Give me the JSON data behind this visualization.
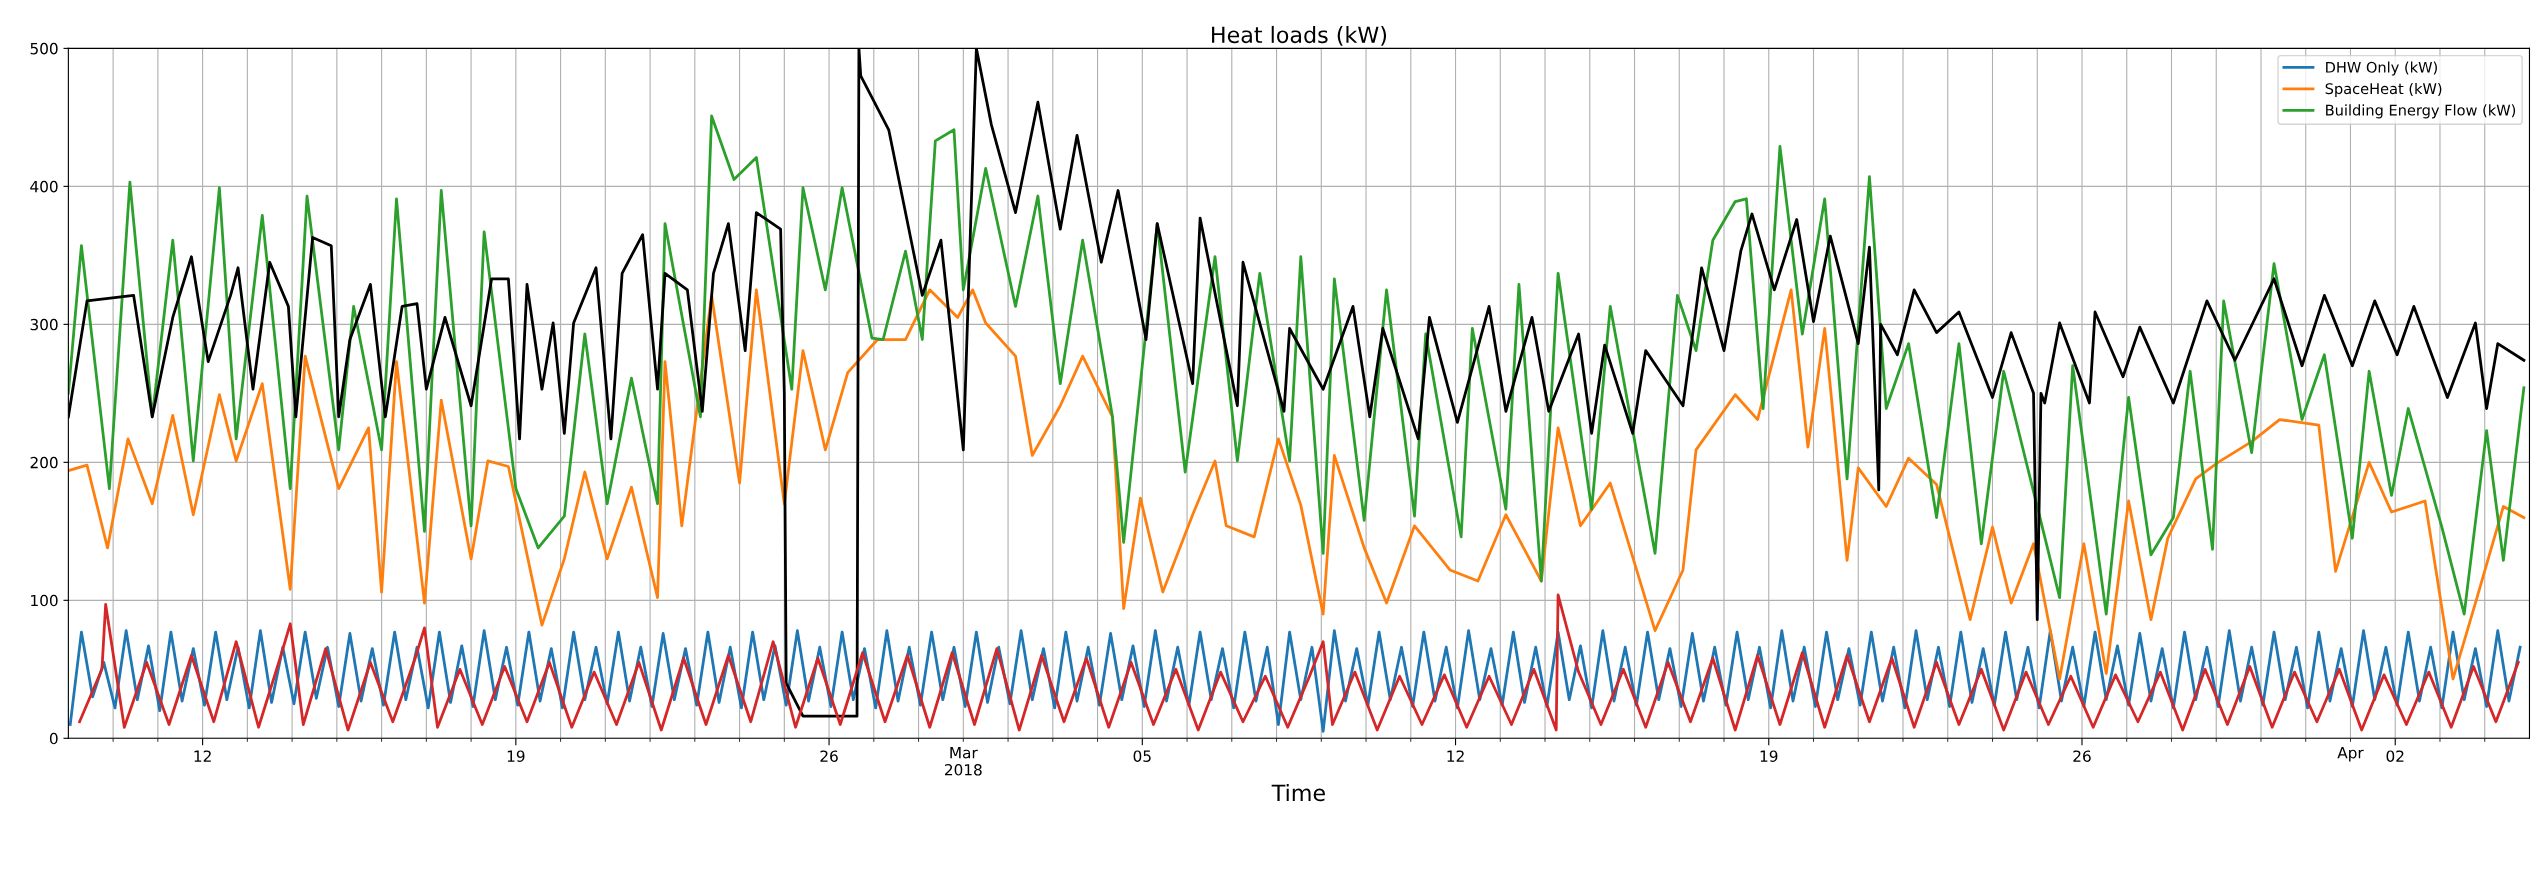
{
  "chart_data": {
    "type": "line",
    "title": "Heat loads (kW)",
    "xlabel": "Time",
    "xlim": [
      "2018-02-09T00:00",
      "2018-04-05T00:00"
    ],
    "ylim": [
      0,
      500
    ],
    "yticks": [
      0,
      100,
      200,
      300,
      400,
      500
    ],
    "xticks": [
      {
        "value": "2018-02-10",
        "label": null
      },
      {
        "value": "2018-02-11",
        "label": null
      },
      {
        "value": "2018-02-12",
        "label": "12"
      },
      {
        "value": "2018-02-13",
        "label": null
      },
      {
        "value": "2018-02-14",
        "label": null
      },
      {
        "value": "2018-02-15",
        "label": null
      },
      {
        "value": "2018-02-16",
        "label": null
      },
      {
        "value": "2018-02-17",
        "label": null
      },
      {
        "value": "2018-02-18",
        "label": null
      },
      {
        "value": "2018-02-19",
        "label": "19"
      },
      {
        "value": "2018-02-20",
        "label": null
      },
      {
        "value": "2018-02-21",
        "label": null
      },
      {
        "value": "2018-02-22",
        "label": null
      },
      {
        "value": "2018-02-23",
        "label": null
      },
      {
        "value": "2018-02-24",
        "label": null
      },
      {
        "value": "2018-02-25",
        "label": null
      },
      {
        "value": "2018-02-26",
        "label": "26"
      },
      {
        "value": "2018-02-27",
        "label": null
      },
      {
        "value": "2018-02-28",
        "label": null
      },
      {
        "value": "2018-03-01",
        "label": "Mar\n2018"
      },
      {
        "value": "2018-03-02",
        "label": null
      },
      {
        "value": "2018-03-03",
        "label": null
      },
      {
        "value": "2018-03-04",
        "label": null
      },
      {
        "value": "2018-03-05",
        "label": "05"
      },
      {
        "value": "2018-03-06",
        "label": null
      },
      {
        "value": "2018-03-07",
        "label": null
      },
      {
        "value": "2018-03-08",
        "label": null
      },
      {
        "value": "2018-03-09",
        "label": null
      },
      {
        "value": "2018-03-10",
        "label": null
      },
      {
        "value": "2018-03-11",
        "label": null
      },
      {
        "value": "2018-03-12",
        "label": "12"
      },
      {
        "value": "2018-03-13",
        "label": null
      },
      {
        "value": "2018-03-14",
        "label": null
      },
      {
        "value": "2018-03-15",
        "label": null
      },
      {
        "value": "2018-03-16",
        "label": null
      },
      {
        "value": "2018-03-17",
        "label": null
      },
      {
        "value": "2018-03-18",
        "label": null
      },
      {
        "value": "2018-03-19",
        "label": "19"
      },
      {
        "value": "2018-03-20",
        "label": null
      },
      {
        "value": "2018-03-21",
        "label": null
      },
      {
        "value": "2018-03-22",
        "label": null
      },
      {
        "value": "2018-03-23",
        "label": null
      },
      {
        "value": "2018-03-24",
        "label": null
      },
      {
        "value": "2018-03-25",
        "label": null
      },
      {
        "value": "2018-03-26",
        "label": "26"
      },
      {
        "value": "2018-03-27",
        "label": null
      },
      {
        "value": "2018-03-28",
        "label": null
      },
      {
        "value": "2018-03-29",
        "label": null
      },
      {
        "value": "2018-03-30",
        "label": null
      },
      {
        "value": "2018-03-31",
        "label": null
      },
      {
        "value": "2018-04-01",
        "label": "Apr"
      },
      {
        "value": "2018-04-02",
        "label": "02"
      },
      {
        "value": "2018-04-03",
        "label": null
      },
      {
        "value": "2018-04-04",
        "label": null
      }
    ],
    "grid": true,
    "legend": "top right",
    "marker": "none",
    "line_style": "solid",
    "series": [
      {
        "name": "DHW Only (kW)",
        "color": "#1f77b4",
        "x": [
          "2018-02-09T01:00",
          "2018-02-09T07:00",
          "2018-02-09T13:00",
          "2018-02-09T19:00",
          "2018-02-10T01:00",
          "2018-02-10T07:00",
          "2018-02-10T13:00",
          "2018-02-10T19:00",
          "2018-02-11T01:00",
          "2018-02-11T07:00",
          "2018-02-11T13:00",
          "2018-02-11T19:00",
          "2018-02-12T01:00",
          "2018-02-12T07:00",
          "2018-02-12T13:00",
          "2018-02-12T19:00",
          "2018-02-13T01:00",
          "2018-02-13T07:00",
          "2018-02-13T13:00",
          "2018-02-13T19:00",
          "2018-02-14T01:00",
          "2018-02-14T07:00",
          "2018-02-14T13:00",
          "2018-02-14T19:00",
          "2018-02-15T01:00",
          "2018-02-15T07:00",
          "2018-02-15T13:00",
          "2018-02-15T19:00",
          "2018-02-16T01:00",
          "2018-02-16T07:00",
          "2018-02-16T13:00",
          "2018-02-16T19:00",
          "2018-02-17T01:00",
          "2018-02-17T07:00",
          "2018-02-17T13:00",
          "2018-02-17T19:00",
          "2018-02-18T01:00",
          "2018-02-18T07:00",
          "2018-02-18T13:00",
          "2018-02-18T19:00",
          "2018-02-19T01:00",
          "2018-02-19T07:00",
          "2018-02-19T13:00",
          "2018-02-19T19:00",
          "2018-02-20T01:00",
          "2018-02-20T07:00",
          "2018-02-20T13:00",
          "2018-02-20T19:00",
          "2018-02-21T01:00",
          "2018-02-21T07:00",
          "2018-02-21T13:00",
          "2018-02-21T19:00",
          "2018-02-22T01:00",
          "2018-02-22T07:00",
          "2018-02-22T13:00",
          "2018-02-22T19:00",
          "2018-02-23T01:00",
          "2018-02-23T07:00",
          "2018-02-23T13:00",
          "2018-02-23T19:00",
          "2018-02-24T01:00",
          "2018-02-24T07:00",
          "2018-02-24T13:00",
          "2018-02-24T19:00",
          "2018-02-25T01:00",
          "2018-02-25T07:00",
          "2018-02-25T13:00",
          "2018-02-25T19:00",
          "2018-02-26T01:00",
          "2018-02-26T07:00",
          "2018-02-26T13:00",
          "2018-02-26T19:00",
          "2018-02-27T01:00",
          "2018-02-27T07:00",
          "2018-02-27T13:00",
          "2018-02-27T19:00",
          "2018-02-28T01:00",
          "2018-02-28T07:00",
          "2018-02-28T13:00",
          "2018-02-28T19:00",
          "2018-03-01T01:00",
          "2018-03-01T07:00",
          "2018-03-01T13:00",
          "2018-03-01T19:00",
          "2018-03-02T01:00",
          "2018-03-02T07:00",
          "2018-03-02T13:00",
          "2018-03-02T19:00",
          "2018-03-03T01:00",
          "2018-03-03T07:00",
          "2018-03-03T13:00",
          "2018-03-03T19:00",
          "2018-03-04T01:00",
          "2018-03-04T07:00",
          "2018-03-04T13:00",
          "2018-03-04T19:00",
          "2018-03-05T01:00",
          "2018-03-05T07:00",
          "2018-03-05T13:00",
          "2018-03-05T19:00",
          "2018-03-06T01:00",
          "2018-03-06T07:00",
          "2018-03-06T13:00",
          "2018-03-06T19:00",
          "2018-03-07T01:00",
          "2018-03-07T07:00",
          "2018-03-07T13:00",
          "2018-03-07T19:00",
          "2018-03-08T01:00",
          "2018-03-08T07:00",
          "2018-03-08T13:00",
          "2018-03-08T19:00",
          "2018-03-09T01:00",
          "2018-03-09T07:00",
          "2018-03-09T13:00",
          "2018-03-09T19:00",
          "2018-03-10T01:00",
          "2018-03-10T07:00",
          "2018-03-10T13:00",
          "2018-03-10T19:00",
          "2018-03-11T01:00",
          "2018-03-11T07:00",
          "2018-03-11T13:00",
          "2018-03-11T19:00",
          "2018-03-12T01:00",
          "2018-03-12T07:00",
          "2018-03-12T13:00",
          "2018-03-12T19:00",
          "2018-03-13T01:00",
          "2018-03-13T07:00",
          "2018-03-13T13:00",
          "2018-03-13T19:00",
          "2018-03-14T01:00",
          "2018-03-14T07:00",
          "2018-03-14T13:00",
          "2018-03-14T19:00",
          "2018-03-15T01:00",
          "2018-03-15T07:00",
          "2018-03-15T13:00",
          "2018-03-15T19:00",
          "2018-03-16T01:00",
          "2018-03-16T07:00",
          "2018-03-16T13:00",
          "2018-03-16T19:00",
          "2018-03-17T01:00",
          "2018-03-17T07:00",
          "2018-03-17T13:00",
          "2018-03-17T19:00",
          "2018-03-18T01:00",
          "2018-03-18T07:00",
          "2018-03-18T13:00",
          "2018-03-18T19:00",
          "2018-03-19T01:00",
          "2018-03-19T07:00",
          "2018-03-19T13:00",
          "2018-03-19T19:00",
          "2018-03-20T01:00",
          "2018-03-20T07:00",
          "2018-03-20T13:00",
          "2018-03-20T19:00",
          "2018-03-21T01:00",
          "2018-03-21T07:00",
          "2018-03-21T13:00",
          "2018-03-21T19:00",
          "2018-03-22T01:00",
          "2018-03-22T07:00",
          "2018-03-22T13:00",
          "2018-03-22T19:00",
          "2018-03-23T01:00",
          "2018-03-23T07:00",
          "2018-03-23T13:00",
          "2018-03-23T19:00",
          "2018-03-24T01:00",
          "2018-03-24T07:00",
          "2018-03-24T13:00",
          "2018-03-24T19:00",
          "2018-03-25T01:00",
          "2018-03-25T07:00",
          "2018-03-25T13:00",
          "2018-03-25T19:00",
          "2018-03-26T01:00",
          "2018-03-26T07:00",
          "2018-03-26T13:00",
          "2018-03-26T19:00",
          "2018-03-27T01:00",
          "2018-03-27T07:00",
          "2018-03-27T13:00",
          "2018-03-27T19:00",
          "2018-03-28T01:00",
          "2018-03-28T07:00",
          "2018-03-28T13:00",
          "2018-03-28T19:00",
          "2018-03-29T01:00",
          "2018-03-29T07:00",
          "2018-03-29T13:00",
          "2018-03-29T19:00",
          "2018-03-30T01:00",
          "2018-03-30T07:00",
          "2018-03-30T13:00",
          "2018-03-30T19:00",
          "2018-03-31T01:00",
          "2018-03-31T07:00",
          "2018-03-31T13:00",
          "2018-03-31T19:00",
          "2018-04-01T01:00",
          "2018-04-01T07:00",
          "2018-04-01T13:00",
          "2018-04-01T19:00",
          "2018-04-02T01:00",
          "2018-04-02T07:00",
          "2018-04-02T13:00",
          "2018-04-02T19:00",
          "2018-04-03T01:00",
          "2018-04-03T07:00",
          "2018-04-03T13:00",
          "2018-04-03T19:00",
          "2018-04-04T01:00",
          "2018-04-04T07:00",
          "2018-04-04T13:00",
          "2018-04-04T19:00"
        ],
        "values": [
          10,
          77,
          30,
          55,
          22,
          78,
          28,
          67,
          20,
          77,
          27,
          65,
          24,
          77,
          28,
          66,
          22,
          78,
          26,
          66,
          25,
          77,
          29,
          66,
          23,
          76,
          27,
          65,
          24,
          77,
          28,
          66,
          22,
          77,
          26,
          67,
          23,
          78,
          28,
          66,
          24,
          77,
          27,
          65,
          22,
          77,
          28,
          66,
          25,
          77,
          27,
          66,
          23,
          76,
          28,
          65,
          24,
          77,
          26,
          66,
          22,
          77,
          28,
          67,
          24,
          78,
          27,
          66,
          23,
          77,
          28,
          65,
          22,
          78,
          27,
          66,
          24,
          77,
          28,
          66,
          23,
          77,
          26,
          66,
          25,
          78,
          28,
          65,
          22,
          77,
          27,
          66,
          24,
          76,
          28,
          67,
          23,
          78,
          27,
          66,
          24,
          77,
          28,
          65,
          22,
          77,
          27,
          66,
          10,
          77,
          28,
          66,
          5,
          78,
          27,
          65,
          24,
          77,
          28,
          66,
          23,
          77,
          27,
          66,
          22,
          78,
          28,
          65,
          24,
          77,
          26,
          66,
          23,
          77,
          28,
          67,
          22,
          78,
          27,
          66,
          24,
          77,
          28,
          65,
          23,
          76,
          27,
          66,
          24,
          77,
          28,
          66,
          22,
          78,
          27,
          66,
          23,
          77,
          28,
          65,
          24,
          77,
          27,
          66,
          22,
          78,
          28,
          66,
          23,
          77,
          26,
          65,
          24,
          77,
          28,
          66,
          22,
          78,
          27,
          66,
          23,
          77,
          28,
          67,
          24,
          76,
          27,
          65,
          22,
          77,
          28,
          66,
          23,
          78,
          27,
          66,
          24,
          77,
          28,
          66,
          22,
          77,
          27,
          65,
          23,
          78,
          28,
          66,
          24,
          77,
          27,
          66,
          22,
          77,
          28,
          65,
          23,
          78,
          27,
          66
        ]
      },
      {
        "name": "SpaceHeat (kW)",
        "color": "#ff7f0e",
        "x": [
          "2018-02-09T00:00",
          "2018-02-09T10:00",
          "2018-02-09T21:00",
          "2018-02-10T08:00",
          "2018-02-10T21:00",
          "2018-02-11T08:00",
          "2018-02-11T19:00",
          "2018-02-12T09:00",
          "2018-02-12T18:00",
          "2018-02-13T08:00",
          "2018-02-13T23:00",
          "2018-02-14T07:00",
          "2018-02-15T01:00",
          "2018-02-15T17:00",
          "2018-02-16T00:00",
          "2018-02-16T08:00",
          "2018-02-16T23:00",
          "2018-02-17T08:00",
          "2018-02-18T00:00",
          "2018-02-18T09:00",
          "2018-02-18T20:00",
          "2018-02-19T14:00",
          "2018-02-20T02:00",
          "2018-02-20T13:00",
          "2018-02-21T01:00",
          "2018-02-21T14:00",
          "2018-02-22T04:00",
          "2018-02-22T08:00",
          "2018-02-22T17:00",
          "2018-02-23T09:00",
          "2018-02-24T00:00",
          "2018-02-24T09:00",
          "2018-02-25T00:00",
          "2018-02-25T10:00",
          "2018-02-25T22:00",
          "2018-02-26T10:00",
          "2018-02-27T02:00",
          "2018-02-27T17:00",
          "2018-02-28T06:00",
          "2018-02-28T21:00",
          "2018-03-01T05:00",
          "2018-03-01T12:00",
          "2018-03-02T04:00",
          "2018-03-02T13:00",
          "2018-03-03T04:00",
          "2018-03-03T16:00",
          "2018-03-04T08:00",
          "2018-03-04T14:00",
          "2018-03-04T23:00",
          "2018-03-05T11:00",
          "2018-03-06T03:00",
          "2018-03-06T15:00",
          "2018-03-06T21:00",
          "2018-03-07T12:00",
          "2018-03-08T01:00",
          "2018-03-08T13:00",
          "2018-03-09T01:00",
          "2018-03-09T07:00",
          "2018-03-09T23:00",
          "2018-03-10T11:00",
          "2018-03-11T02:00",
          "2018-03-11T21:00",
          "2018-03-12T12:00",
          "2018-03-13T03:00",
          "2018-03-13T22:00",
          "2018-03-14T07:00",
          "2018-03-14T19:00",
          "2018-03-15T11:00",
          "2018-03-16T11:00",
          "2018-03-17T02:00",
          "2018-03-17T09:00",
          "2018-03-18T06:00",
          "2018-03-18T18:00",
          "2018-03-19T12:00",
          "2018-03-19T21:00",
          "2018-03-20T06:00",
          "2018-03-20T18:00",
          "2018-03-21T00:00",
          "2018-03-21T15:00",
          "2018-03-22T03:00",
          "2018-03-22T18:00",
          "2018-03-23T12:00",
          "2018-03-24T00:00",
          "2018-03-24T10:00",
          "2018-03-24T22:00",
          "2018-03-25T12:00",
          "2018-03-26T01:00",
          "2018-03-26T13:00",
          "2018-03-27T01:00",
          "2018-03-27T13:00",
          "2018-03-27T22:00",
          "2018-03-28T13:00",
          "2018-03-29T01:00",
          "2018-03-29T19:00",
          "2018-03-30T10:00",
          "2018-03-31T07:00",
          "2018-03-31T16:00",
          "2018-04-01T10:00",
          "2018-04-01T22:00",
          "2018-04-02T16:00",
          "2018-04-03T07:00",
          "2018-04-03T19:00",
          "2018-04-04T10:00",
          "2018-04-04T21:00"
        ],
        "values": [
          194,
          198,
          138,
          217,
          170,
          234,
          162,
          249,
          201,
          257,
          108,
          277,
          181,
          225,
          106,
          273,
          98,
          245,
          130,
          201,
          197,
          82,
          130,
          193,
          130,
          182,
          102,
          273,
          154,
          321,
          185,
          325,
          170,
          281,
          209,
          265,
          289,
          289,
          325,
          305,
          325,
          301,
          277,
          205,
          241,
          277,
          233,
          94,
          174,
          106,
          162,
          201,
          154,
          146,
          217,
          169,
          90,
          205,
          138,
          98,
          154,
          122,
          114,
          162,
          114,
          225,
          154,
          185,
          78,
          122,
          209,
          249,
          231,
          325,
          211,
          297,
          129,
          196,
          168,
          203,
          184,
          86,
          153,
          98,
          141,
          43,
          141,
          47,
          172,
          86,
          145,
          188,
          200,
          215,
          231,
          227,
          121,
          200,
          164,
          172,
          43,
          98,
          168,
          160
        ]
      },
      {
        "name": "Building Energy Flow (kW)",
        "color": "#2ca02c",
        "x": [
          "2018-02-09T00:00",
          "2018-02-09T07:00",
          "2018-02-09T22:00",
          "2018-02-10T09:00",
          "2018-02-10T21:00",
          "2018-02-11T08:00",
          "2018-02-11T19:00",
          "2018-02-12T09:00",
          "2018-02-12T18:00",
          "2018-02-13T08:00",
          "2018-02-13T23:00",
          "2018-02-14T08:00",
          "2018-02-15T01:00",
          "2018-02-15T09:00",
          "2018-02-16T00:00",
          "2018-02-16T08:00",
          "2018-02-16T23:00",
          "2018-02-17T08:00",
          "2018-02-18T00:00",
          "2018-02-18T07:00",
          "2018-02-19T00:00",
          "2018-02-19T12:00",
          "2018-02-20T02:00",
          "2018-02-20T13:00",
          "2018-02-21T01:00",
          "2018-02-21T14:00",
          "2018-02-22T04:00",
          "2018-02-22T08:00",
          "2018-02-23T03:00",
          "2018-02-23T09:00",
          "2018-02-23T21:00",
          "2018-02-24T09:00",
          "2018-02-25T04:00",
          "2018-02-25T10:00",
          "2018-02-25T22:00",
          "2018-02-26T07:00",
          "2018-02-26T23:00",
          "2018-02-27T05:00",
          "2018-02-27T17:00",
          "2018-02-28T02:00",
          "2018-02-28T09:00",
          "2018-02-28T19:00",
          "2018-03-01T00:00",
          "2018-03-01T12:00",
          "2018-03-02T04:00",
          "2018-03-02T16:00",
          "2018-03-03T04:00",
          "2018-03-03T16:00",
          "2018-03-04T08:00",
          "2018-03-04T14:00",
          "2018-03-05T08:00",
          "2018-03-05T23:00",
          "2018-03-06T15:00",
          "2018-03-07T03:00",
          "2018-03-07T15:00",
          "2018-03-08T07:00",
          "2018-03-08T13:00",
          "2018-03-09T01:00",
          "2018-03-09T07:00",
          "2018-03-09T23:00",
          "2018-03-10T11:00",
          "2018-03-11T02:00",
          "2018-03-11T08:00",
          "2018-03-12T03:00",
          "2018-03-12T09:00",
          "2018-03-13T03:00",
          "2018-03-13T10:00",
          "2018-03-13T22:00",
          "2018-03-14T07:00",
          "2018-03-15T01:00",
          "2018-03-15T11:00",
          "2018-03-16T11:00",
          "2018-03-16T23:00",
          "2018-03-17T09:00",
          "2018-03-17T18:00",
          "2018-03-18T06:00",
          "2018-03-18T12:00",
          "2018-03-18T21:00",
          "2018-03-19T06:00",
          "2018-03-19T18:00",
          "2018-03-20T06:00",
          "2018-03-20T18:00",
          "2018-03-21T06:00",
          "2018-03-21T15:00",
          "2018-03-22T03:00",
          "2018-03-22T18:00",
          "2018-03-23T06:00",
          "2018-03-23T18:00",
          "2018-03-24T06:00",
          "2018-03-25T00:00",
          "2018-03-25T12:00",
          "2018-03-25T19:00",
          "2018-03-26T13:00",
          "2018-03-27T01:00",
          "2018-03-27T13:00",
          "2018-03-28T01:00",
          "2018-03-28T10:00",
          "2018-03-28T22:00",
          "2018-03-29T04:00",
          "2018-03-29T19:00",
          "2018-03-30T07:00",
          "2018-03-30T22:00",
          "2018-03-31T10:00",
          "2018-04-01T01:00",
          "2018-04-01T10:00",
          "2018-04-01T22:00",
          "2018-04-02T07:00",
          "2018-04-03T01:00",
          "2018-04-03T13:00",
          "2018-04-04T01:00",
          "2018-04-04T10:00",
          "2018-04-04T21:00"
        ],
        "values": [
          250,
          357,
          181,
          403,
          233,
          361,
          201,
          399,
          217,
          379,
          181,
          393,
          209,
          313,
          209,
          391,
          150,
          397,
          154,
          367,
          181,
          138,
          161,
          293,
          170,
          261,
          170,
          373,
          233,
          451,
          405,
          421,
          253,
          399,
          325,
          399,
          290,
          289,
          353,
          289,
          433,
          441,
          325,
          413,
          313,
          393,
          257,
          361,
          233,
          142,
          373,
          193,
          349,
          201,
          337,
          201,
          349,
          134,
          333,
          158,
          325,
          161,
          293,
          146,
          297,
          166,
          329,
          114,
          337,
          166,
          313,
          134,
          321,
          281,
          361,
          389,
          391,
          239,
          429,
          293,
          391,
          188,
          407,
          239,
          286,
          160,
          286,
          141,
          266,
          168,
          102,
          270,
          90,
          247,
          133,
          160,
          266,
          137,
          317,
          207,
          344,
          231,
          278,
          145,
          266,
          176,
          239,
          153,
          90,
          223,
          129,
          254
        ]
      },
      {
        "color": "#000000",
        "x": [
          "2018-02-09T00:00",
          "2018-02-09T10:00",
          "2018-02-10T11:00",
          "2018-02-10T21:00",
          "2018-02-11T08:00",
          "2018-02-11T18:00",
          "2018-02-12T03:00",
          "2018-02-12T15:00",
          "2018-02-12T19:00",
          "2018-02-13T03:00",
          "2018-02-13T12:00",
          "2018-02-13T22:00",
          "2018-02-14T02:00",
          "2018-02-14T11:00",
          "2018-02-14T21:00",
          "2018-02-15T01:00",
          "2018-02-15T07:00",
          "2018-02-15T18:00",
          "2018-02-16T02:00",
          "2018-02-16T11:00",
          "2018-02-16T19:00",
          "2018-02-17T00:00",
          "2018-02-17T10:00",
          "2018-02-18T00:00",
          "2018-02-18T11:00",
          "2018-02-18T20:00",
          "2018-02-19T02:00",
          "2018-02-19T06:00",
          "2018-02-19T14:00",
          "2018-02-19T20:00",
          "2018-02-20T02:00",
          "2018-02-20T07:00",
          "2018-02-20T19:00",
          "2018-02-21T03:00",
          "2018-02-21T09:00",
          "2018-02-21T20:00",
          "2018-02-22T04:00",
          "2018-02-22T08:00",
          "2018-02-22T20:00",
          "2018-02-23T04:00",
          "2018-02-23T10:00",
          "2018-02-23T18:00",
          "2018-02-24T03:00",
          "2018-02-24T09:00",
          "2018-02-24T22:00",
          "2018-02-25T00:00",
          "2018-02-25T01:00",
          "2018-02-25T10:00",
          "2018-02-26T15:00",
          "2018-02-26T16:00",
          "2018-02-26T17:00",
          "2018-02-27T08:00",
          "2018-02-28T02:00",
          "2018-02-28T12:00",
          "2018-03-01T00:00",
          "2018-03-01T07:00",
          "2018-03-01T15:00",
          "2018-03-02T04:00",
          "2018-03-02T16:00",
          "2018-03-03T04:00",
          "2018-03-03T13:00",
          "2018-03-04T02:00",
          "2018-03-04T11:00",
          "2018-03-05T02:00",
          "2018-03-05T08:00",
          "2018-03-06T03:00",
          "2018-03-06T07:00",
          "2018-03-07T03:00",
          "2018-03-07T06:00",
          "2018-03-08T04:00",
          "2018-03-08T07:00",
          "2018-03-09T01:00",
          "2018-03-09T17:00",
          "2018-03-10T02:00",
          "2018-03-10T09:00",
          "2018-03-11T04:00",
          "2018-03-11T10:00",
          "2018-03-12T01:00",
          "2018-03-12T18:00",
          "2018-03-13T03:00",
          "2018-03-13T17:00",
          "2018-03-14T02:00",
          "2018-03-14T18:00",
          "2018-03-15T01:00",
          "2018-03-15T08:00",
          "2018-03-15T23:00",
          "2018-03-16T06:00",
          "2018-03-17T02:00",
          "2018-03-17T12:00",
          "2018-03-18T00:00",
          "2018-03-18T09:00",
          "2018-03-18T15:00",
          "2018-03-19T03:00",
          "2018-03-19T15:00",
          "2018-03-20T00:00",
          "2018-03-20T09:00",
          "2018-03-21T00:00",
          "2018-03-21T06:00",
          "2018-03-21T11:00",
          "2018-03-21T12:00",
          "2018-03-21T21:00",
          "2018-03-22T06:00",
          "2018-03-22T18:00",
          "2018-03-23T06:00",
          "2018-03-24T00:00",
          "2018-03-24T10:00",
          "2018-03-24T22:00",
          "2018-03-25T00:00",
          "2018-03-25T02:00",
          "2018-03-25T04:00",
          "2018-03-25T12:00",
          "2018-03-26T04:00",
          "2018-03-26T07:00",
          "2018-03-26T22:00",
          "2018-03-27T07:00",
          "2018-03-28T01:00",
          "2018-03-28T19:00",
          "2018-03-29T10:00",
          "2018-03-30T07:00",
          "2018-03-30T22:00",
          "2018-03-31T10:00",
          "2018-04-01T01:00",
          "2018-04-01T13:00",
          "2018-04-02T01:00",
          "2018-04-02T10:00",
          "2018-04-03T04:00",
          "2018-04-03T19:00",
          "2018-04-04T01:00",
          "2018-04-04T07:00",
          "2018-04-04T21:00"
        ],
        "values": [
          233,
          317,
          321,
          233,
          305,
          349,
          273,
          321,
          341,
          253,
          345,
          313,
          233,
          363,
          357,
          233,
          289,
          329,
          233,
          313,
          315,
          253,
          305,
          241,
          333,
          333,
          217,
          329,
          253,
          301,
          221,
          301,
          341,
          217,
          337,
          365,
          253,
          337,
          325,
          237,
          337,
          373,
          281,
          381,
          369,
          250,
          40,
          16,
          16,
          500,
          480,
          441,
          321,
          361,
          209,
          500,
          445,
          381,
          461,
          369,
          437,
          345,
          397,
          289,
          373,
          257,
          377,
          241,
          345,
          237,
          297,
          253,
          313,
          233,
          297,
          217,
          305,
          229,
          313,
          237,
          305,
          237,
          293,
          221,
          285,
          221,
          281,
          241,
          341,
          281,
          353,
          380,
          325,
          376,
          302,
          364,
          286,
          356,
          180,
          300,
          278,
          325,
          294,
          309,
          247,
          294,
          250,
          86,
          250,
          243,
          301,
          243,
          309,
          262,
          298,
          243,
          317,
          274,
          333,
          270,
          321,
          270,
          317,
          278,
          313,
          247,
          301,
          239,
          286,
          274
        ]
      },
      {
        "color": "#d62728",
        "x": [
          "2018-02-09T06:00",
          "2018-02-09T18:00",
          "2018-02-09T20:00",
          "2018-02-10T06:00",
          "2018-02-10T18:00",
          "2018-02-11T06:00",
          "2018-02-11T18:00",
          "2018-02-12T06:00",
          "2018-02-12T18:00",
          "2018-02-13T06:00",
          "2018-02-13T18:00",
          "2018-02-13T23:00",
          "2018-02-14T06:00",
          "2018-02-14T18:00",
          "2018-02-15T06:00",
          "2018-02-15T18:00",
          "2018-02-16T06:00",
          "2018-02-16T18:00",
          "2018-02-16T23:00",
          "2018-02-17T06:00",
          "2018-02-17T18:00",
          "2018-02-18T06:00",
          "2018-02-18T18:00",
          "2018-02-19T06:00",
          "2018-02-19T18:00",
          "2018-02-20T06:00",
          "2018-02-20T18:00",
          "2018-02-21T06:00",
          "2018-02-21T18:00",
          "2018-02-22T06:00",
          "2018-02-22T18:00",
          "2018-02-23T06:00",
          "2018-02-23T18:00",
          "2018-02-24T06:00",
          "2018-02-24T18:00",
          "2018-02-25T06:00",
          "2018-02-25T18:00",
          "2018-02-26T06:00",
          "2018-02-26T18:00",
          "2018-02-27T06:00",
          "2018-02-27T18:00",
          "2018-02-28T06:00",
          "2018-02-28T18:00",
          "2018-03-01T06:00",
          "2018-03-01T18:00",
          "2018-03-02T06:00",
          "2018-03-02T18:00",
          "2018-03-03T06:00",
          "2018-03-03T18:00",
          "2018-03-04T06:00",
          "2018-03-04T18:00",
          "2018-03-05T06:00",
          "2018-03-05T18:00",
          "2018-03-06T06:00",
          "2018-03-06T18:00",
          "2018-03-07T06:00",
          "2018-03-07T18:00",
          "2018-03-08T06:00",
          "2018-03-08T18:00",
          "2018-03-09T01:00",
          "2018-03-09T06:00",
          "2018-03-09T18:00",
          "2018-03-10T06:00",
          "2018-03-10T18:00",
          "2018-03-11T06:00",
          "2018-03-11T18:00",
          "2018-03-12T06:00",
          "2018-03-12T18:00",
          "2018-03-13T06:00",
          "2018-03-13T18:00",
          "2018-03-14T06:00",
          "2018-03-14T07:00",
          "2018-03-14T18:00",
          "2018-03-15T06:00",
          "2018-03-15T18:00",
          "2018-03-16T06:00",
          "2018-03-16T18:00",
          "2018-03-17T06:00",
          "2018-03-17T18:00",
          "2018-03-18T06:00",
          "2018-03-18T18:00",
          "2018-03-19T06:00",
          "2018-03-19T18:00",
          "2018-03-20T06:00",
          "2018-03-20T18:00",
          "2018-03-21T06:00",
          "2018-03-21T18:00",
          "2018-03-22T06:00",
          "2018-03-22T18:00",
          "2018-03-23T06:00",
          "2018-03-23T18:00",
          "2018-03-24T06:00",
          "2018-03-24T18:00",
          "2018-03-25T06:00",
          "2018-03-25T18:00",
          "2018-03-26T06:00",
          "2018-03-26T18:00",
          "2018-03-27T06:00",
          "2018-03-27T18:00",
          "2018-03-28T06:00",
          "2018-03-28T18:00",
          "2018-03-29T06:00",
          "2018-03-29T18:00",
          "2018-03-30T06:00",
          "2018-03-30T18:00",
          "2018-03-31T06:00",
          "2018-03-31T18:00",
          "2018-04-01T06:00",
          "2018-04-01T18:00",
          "2018-04-02T06:00",
          "2018-04-02T18:00",
          "2018-04-03T06:00",
          "2018-04-03T18:00",
          "2018-04-04T06:00",
          "2018-04-04T18:00"
        ],
        "values": [
          12,
          50,
          97,
          8,
          55,
          10,
          60,
          12,
          70,
          8,
          60,
          83,
          10,
          65,
          6,
          55,
          12,
          58,
          80,
          8,
          50,
          10,
          52,
          12,
          55,
          8,
          48,
          10,
          55,
          6,
          58,
          10,
          60,
          12,
          70,
          8,
          58,
          10,
          62,
          12,
          60,
          8,
          62,
          10,
          65,
          6,
          60,
          12,
          58,
          8,
          55,
          10,
          50,
          6,
          48,
          12,
          45,
          8,
          46,
          70,
          10,
          48,
          6,
          45,
          10,
          46,
          8,
          45,
          10,
          50,
          6,
          104,
          48,
          10,
          50,
          8,
          55,
          12,
          58,
          6,
          60,
          10,
          62,
          8,
          60,
          12,
          58,
          8,
          55,
          10,
          50,
          6,
          48,
          10,
          45,
          8,
          46,
          12,
          48,
          6,
          50,
          10,
          52,
          8,
          48,
          12,
          50,
          6,
          46,
          10,
          48,
          8,
          52,
          12,
          55
        ]
      }
    ]
  }
}
